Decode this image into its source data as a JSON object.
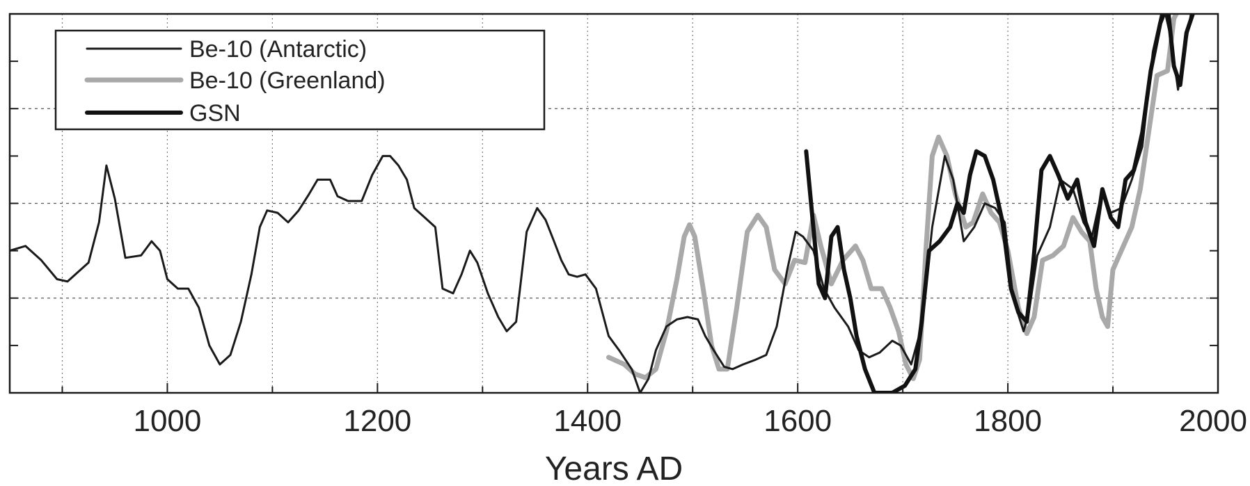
{
  "chart_data": {
    "type": "line",
    "title": "",
    "xlabel": "Years AD",
    "ylabel": "",
    "xlim": [
      850,
      2000
    ],
    "ylim": [
      0,
      8
    ],
    "x_ticks": [
      1000,
      1200,
      1400,
      1600,
      1800,
      2000
    ],
    "x_tick_labels": [
      "1000",
      "1200",
      "1400",
      "1600",
      "1800",
      "2000"
    ],
    "y_tick_count": 9,
    "grid": true,
    "legend_position": "top-left",
    "series": [
      {
        "name": "Be-10 (Antarctic)",
        "color": "#1a1a1a",
        "points": [
          [
            850,
            3.0
          ],
          [
            865,
            3.1
          ],
          [
            880,
            2.8
          ],
          [
            895,
            2.4
          ],
          [
            905,
            2.35
          ],
          [
            915,
            2.55
          ],
          [
            925,
            2.75
          ],
          [
            935,
            3.6
          ],
          [
            942,
            4.8
          ],
          [
            950,
            4.1
          ],
          [
            960,
            2.85
          ],
          [
            975,
            2.9
          ],
          [
            985,
            3.2
          ],
          [
            993,
            3.0
          ],
          [
            1000,
            2.4
          ],
          [
            1010,
            2.2
          ],
          [
            1020,
            2.2
          ],
          [
            1030,
            1.8
          ],
          [
            1040,
            1.0
          ],
          [
            1050,
            0.6
          ],
          [
            1060,
            0.8
          ],
          [
            1070,
            1.5
          ],
          [
            1080,
            2.5
          ],
          [
            1088,
            3.5
          ],
          [
            1095,
            3.85
          ],
          [
            1105,
            3.8
          ],
          [
            1115,
            3.6
          ],
          [
            1125,
            3.85
          ],
          [
            1135,
            4.2
          ],
          [
            1143,
            4.5
          ],
          [
            1155,
            4.5
          ],
          [
            1162,
            4.15
          ],
          [
            1172,
            4.05
          ],
          [
            1185,
            4.05
          ],
          [
            1195,
            4.6
          ],
          [
            1205,
            5.0
          ],
          [
            1212,
            5.0
          ],
          [
            1220,
            4.8
          ],
          [
            1228,
            4.5
          ],
          [
            1235,
            3.9
          ],
          [
            1245,
            3.7
          ],
          [
            1255,
            3.5
          ],
          [
            1262,
            2.2
          ],
          [
            1272,
            2.1
          ],
          [
            1280,
            2.5
          ],
          [
            1288,
            3.0
          ],
          [
            1295,
            2.75
          ],
          [
            1305,
            2.1
          ],
          [
            1315,
            1.6
          ],
          [
            1323,
            1.3
          ],
          [
            1332,
            1.5
          ],
          [
            1342,
            3.4
          ],
          [
            1352,
            3.9
          ],
          [
            1360,
            3.65
          ],
          [
            1368,
            3.2
          ],
          [
            1375,
            2.8
          ],
          [
            1382,
            2.5
          ],
          [
            1390,
            2.45
          ],
          [
            1398,
            2.5
          ],
          [
            1408,
            2.2
          ],
          [
            1420,
            1.2
          ],
          [
            1430,
            0.9
          ],
          [
            1442,
            0.5
          ],
          [
            1450,
            0.0
          ],
          [
            1458,
            0.3
          ],
          [
            1465,
            0.9
          ],
          [
            1475,
            1.4
          ],
          [
            1485,
            1.55
          ],
          [
            1495,
            1.6
          ],
          [
            1505,
            1.55
          ],
          [
            1512,
            1.2
          ],
          [
            1520,
            0.9
          ],
          [
            1530,
            0.55
          ],
          [
            1538,
            0.5
          ],
          [
            1548,
            0.6
          ],
          [
            1560,
            0.7
          ],
          [
            1570,
            0.8
          ],
          [
            1580,
            1.4
          ],
          [
            1590,
            2.6
          ],
          [
            1598,
            3.4
          ],
          [
            1605,
            3.3
          ],
          [
            1615,
            3.0
          ],
          [
            1625,
            2.2
          ],
          [
            1635,
            1.8
          ],
          [
            1648,
            1.4
          ],
          [
            1658,
            0.9
          ],
          [
            1668,
            0.75
          ],
          [
            1678,
            0.85
          ],
          [
            1690,
            1.1
          ],
          [
            1698,
            1.0
          ],
          [
            1708,
            0.6
          ],
          [
            1718,
            1.4
          ],
          [
            1728,
            3.5
          ],
          [
            1740,
            5.0
          ],
          [
            1748,
            4.5
          ],
          [
            1758,
            3.2
          ],
          [
            1768,
            3.5
          ],
          [
            1778,
            4.0
          ],
          [
            1788,
            3.9
          ],
          [
            1797,
            3.6
          ],
          [
            1805,
            2.0
          ],
          [
            1815,
            1.3
          ],
          [
            1820,
            1.7
          ],
          [
            1828,
            2.9
          ],
          [
            1840,
            3.5
          ],
          [
            1850,
            4.5
          ],
          [
            1862,
            4.3
          ],
          [
            1872,
            3.6
          ],
          [
            1880,
            3.3
          ],
          [
            1890,
            4.3
          ],
          [
            1898,
            3.8
          ],
          [
            1908,
            3.9
          ],
          [
            1918,
            4.5
          ],
          [
            1928,
            5.2
          ],
          [
            1938,
            7.2
          ],
          [
            1948,
            8.2
          ],
          [
            1955,
            7.5
          ],
          [
            1962,
            6.4
          ],
          [
            1968,
            7.2
          ],
          [
            1975,
            8.1
          ]
        ]
      },
      {
        "name": "Be-10 (Greenland)",
        "color": "#a9a9a9",
        "points": [
          [
            1420,
            0.75
          ],
          [
            1435,
            0.6
          ],
          [
            1445,
            0.4
          ],
          [
            1455,
            0.32
          ],
          [
            1465,
            0.5
          ],
          [
            1475,
            1.3
          ],
          [
            1485,
            2.4
          ],
          [
            1492,
            3.3
          ],
          [
            1497,
            3.55
          ],
          [
            1502,
            3.3
          ],
          [
            1510,
            2.2
          ],
          [
            1518,
            1.0
          ],
          [
            1525,
            0.5
          ],
          [
            1533,
            0.5
          ],
          [
            1542,
            1.8
          ],
          [
            1552,
            3.4
          ],
          [
            1562,
            3.75
          ],
          [
            1570,
            3.5
          ],
          [
            1578,
            2.6
          ],
          [
            1588,
            2.3
          ],
          [
            1597,
            2.8
          ],
          [
            1607,
            2.75
          ],
          [
            1615,
            3.75
          ],
          [
            1622,
            3.1
          ],
          [
            1632,
            2.3
          ],
          [
            1643,
            2.8
          ],
          [
            1655,
            3.1
          ],
          [
            1662,
            2.8
          ],
          [
            1670,
            2.2
          ],
          [
            1680,
            2.2
          ],
          [
            1688,
            1.8
          ],
          [
            1696,
            1.3
          ],
          [
            1703,
            0.6
          ],
          [
            1710,
            0.3
          ],
          [
            1716,
            0.7
          ],
          [
            1722,
            3.0
          ],
          [
            1728,
            5.0
          ],
          [
            1734,
            5.4
          ],
          [
            1742,
            5.0
          ],
          [
            1750,
            4.2
          ],
          [
            1760,
            3.5
          ],
          [
            1767,
            3.6
          ],
          [
            1776,
            4.2
          ],
          [
            1784,
            3.8
          ],
          [
            1792,
            3.6
          ],
          [
            1800,
            3.0
          ],
          [
            1810,
            1.8
          ],
          [
            1818,
            1.25
          ],
          [
            1825,
            1.6
          ],
          [
            1833,
            2.8
          ],
          [
            1843,
            2.9
          ],
          [
            1853,
            3.1
          ],
          [
            1862,
            3.7
          ],
          [
            1870,
            3.4
          ],
          [
            1878,
            3.2
          ],
          [
            1884,
            2.2
          ],
          [
            1890,
            1.6
          ],
          [
            1895,
            1.4
          ],
          [
            1900,
            2.6
          ],
          [
            1908,
            3.0
          ],
          [
            1918,
            3.5
          ],
          [
            1926,
            4.3
          ],
          [
            1934,
            5.5
          ],
          [
            1942,
            6.7
          ],
          [
            1952,
            6.8
          ],
          [
            1958,
            7.9
          ],
          [
            1965,
            8.2
          ],
          [
            1972,
            8.1
          ]
        ]
      },
      {
        "name": "GSN",
        "color": "#111111",
        "points": [
          [
            1608,
            5.1
          ],
          [
            1614,
            3.7
          ],
          [
            1620,
            2.3
          ],
          [
            1626,
            2.0
          ],
          [
            1632,
            3.3
          ],
          [
            1638,
            3.5
          ],
          [
            1644,
            2.6
          ],
          [
            1650,
            2.0
          ],
          [
            1656,
            1.2
          ],
          [
            1664,
            0.5
          ],
          [
            1673,
            0.0
          ],
          [
            1690,
            0.0
          ],
          [
            1702,
            0.15
          ],
          [
            1712,
            0.5
          ],
          [
            1718,
            1.5
          ],
          [
            1725,
            3.0
          ],
          [
            1735,
            3.2
          ],
          [
            1745,
            3.5
          ],
          [
            1752,
            4.0
          ],
          [
            1758,
            3.8
          ],
          [
            1764,
            4.6
          ],
          [
            1770,
            5.1
          ],
          [
            1778,
            5.0
          ],
          [
            1786,
            4.5
          ],
          [
            1795,
            3.6
          ],
          [
            1803,
            2.2
          ],
          [
            1810,
            1.7
          ],
          [
            1818,
            1.5
          ],
          [
            1824,
            2.7
          ],
          [
            1832,
            4.7
          ],
          [
            1840,
            5.0
          ],
          [
            1848,
            4.6
          ],
          [
            1857,
            4.1
          ],
          [
            1866,
            4.5
          ],
          [
            1874,
            3.6
          ],
          [
            1882,
            3.1
          ],
          [
            1890,
            4.3
          ],
          [
            1898,
            3.7
          ],
          [
            1905,
            3.5
          ],
          [
            1912,
            4.5
          ],
          [
            1920,
            4.7
          ],
          [
            1928,
            5.5
          ],
          [
            1936,
            6.8
          ],
          [
            1945,
            7.8
          ],
          [
            1952,
            8.2
          ],
          [
            1958,
            6.9
          ],
          [
            1964,
            6.5
          ],
          [
            1970,
            7.6
          ],
          [
            1976,
            8.0
          ]
        ]
      }
    ]
  }
}
